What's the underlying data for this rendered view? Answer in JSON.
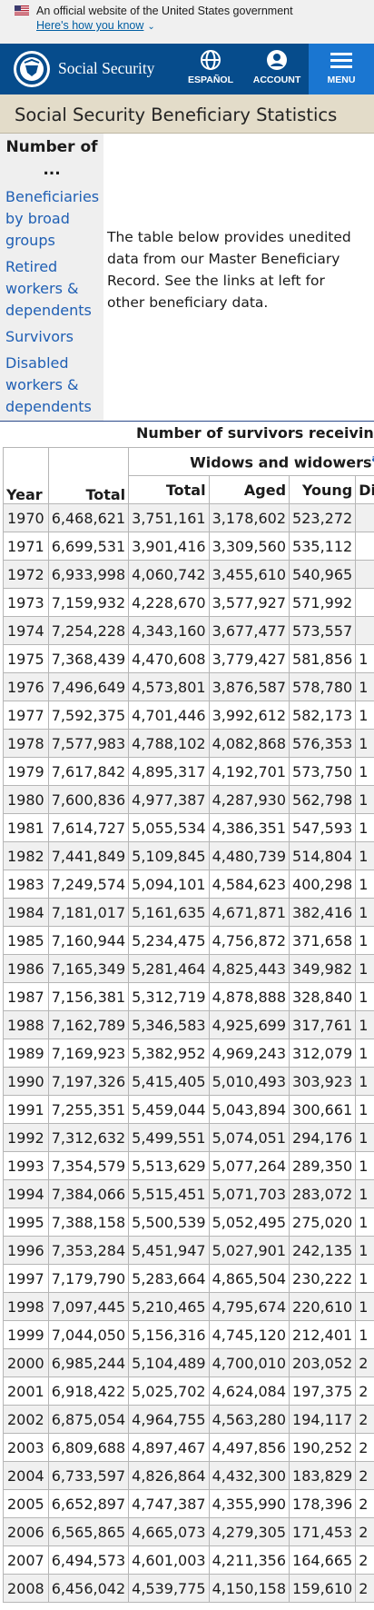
{
  "gov_banner": {
    "text": "An official website of the United States government",
    "link": "Here's how you know"
  },
  "header": {
    "brand": "Social Security",
    "espanol_label": "ESPAÑOL",
    "account_label": "ACCOUNT",
    "menu_label": "MENU"
  },
  "page_title": "Social Security Beneficiary Statistics",
  "sidenav": {
    "heading": "Number of ...",
    "items": [
      "Beneficiaries by broad groups",
      "Retired workers & dependents",
      "Survivors",
      "Disabled workers & dependents"
    ]
  },
  "intro": "The table below provides unedited data from our Master Beneficiary Record. See the links at left for other beneficiary data.",
  "table": {
    "caption": "Number of survivors receivin",
    "group_header": "Widows and widowers",
    "group_footnote": "a",
    "columns": [
      "Year",
      "Total",
      "Total",
      "Aged",
      "Young",
      "Di"
    ],
    "rows": [
      [
        "1970",
        "6,468,621",
        "3,751,161",
        "3,178,602",
        "523,272",
        ""
      ],
      [
        "1971",
        "6,699,531",
        "3,901,416",
        "3,309,560",
        "535,112",
        ""
      ],
      [
        "1972",
        "6,933,998",
        "4,060,742",
        "3,455,610",
        "540,965",
        ""
      ],
      [
        "1973",
        "7,159,932",
        "4,228,670",
        "3,577,927",
        "571,992",
        ""
      ],
      [
        "1974",
        "7,254,228",
        "4,343,160",
        "3,677,477",
        "573,557",
        ""
      ],
      [
        "1975",
        "7,368,439",
        "4,470,608",
        "3,779,427",
        "581,856",
        "1"
      ],
      [
        "1976",
        "7,496,649",
        "4,573,801",
        "3,876,587",
        "578,780",
        "1"
      ],
      [
        "1977",
        "7,592,375",
        "4,701,446",
        "3,992,612",
        "582,173",
        "1"
      ],
      [
        "1978",
        "7,577,983",
        "4,788,102",
        "4,082,868",
        "576,353",
        "1"
      ],
      [
        "1979",
        "7,617,842",
        "4,895,317",
        "4,192,701",
        "573,750",
        "1"
      ],
      [
        "1980",
        "7,600,836",
        "4,977,387",
        "4,287,930",
        "562,798",
        "1"
      ],
      [
        "1981",
        "7,614,727",
        "5,055,534",
        "4,386,351",
        "547,593",
        "1"
      ],
      [
        "1982",
        "7,441,849",
        "5,109,845",
        "4,480,739",
        "514,804",
        "1"
      ],
      [
        "1983",
        "7,249,574",
        "5,094,101",
        "4,584,623",
        "400,298",
        "1"
      ],
      [
        "1984",
        "7,181,017",
        "5,161,635",
        "4,671,871",
        "382,416",
        "1"
      ],
      [
        "1985",
        "7,160,944",
        "5,234,475",
        "4,756,872",
        "371,658",
        "1"
      ],
      [
        "1986",
        "7,165,349",
        "5,281,464",
        "4,825,443",
        "349,982",
        "1"
      ],
      [
        "1987",
        "7,156,381",
        "5,312,719",
        "4,878,888",
        "328,840",
        "1"
      ],
      [
        "1988",
        "7,162,789",
        "5,346,583",
        "4,925,699",
        "317,761",
        "1"
      ],
      [
        "1989",
        "7,169,923",
        "5,382,952",
        "4,969,243",
        "312,079",
        "1"
      ],
      [
        "1990",
        "7,197,326",
        "5,415,405",
        "5,010,493",
        "303,923",
        "1"
      ],
      [
        "1991",
        "7,255,351",
        "5,459,044",
        "5,043,894",
        "300,661",
        "1"
      ],
      [
        "1992",
        "7,312,632",
        "5,499,551",
        "5,074,051",
        "294,176",
        "1"
      ],
      [
        "1993",
        "7,354,579",
        "5,513,629",
        "5,077,264",
        "289,350",
        "1"
      ],
      [
        "1994",
        "7,384,066",
        "5,515,451",
        "5,071,703",
        "283,072",
        "1"
      ],
      [
        "1995",
        "7,388,158",
        "5,500,539",
        "5,052,495",
        "275,020",
        "1"
      ],
      [
        "1996",
        "7,353,284",
        "5,451,947",
        "5,027,901",
        "242,135",
        "1"
      ],
      [
        "1997",
        "7,179,790",
        "5,283,664",
        "4,865,504",
        "230,222",
        "1"
      ],
      [
        "1998",
        "7,097,445",
        "5,210,465",
        "4,795,674",
        "220,610",
        "1"
      ],
      [
        "1999",
        "7,044,050",
        "5,156,316",
        "4,745,120",
        "212,401",
        "1"
      ],
      [
        "2000",
        "6,985,244",
        "5,104,489",
        "4,700,010",
        "203,052",
        "2"
      ],
      [
        "2001",
        "6,918,422",
        "5,025,702",
        "4,624,084",
        "197,375",
        "2"
      ],
      [
        "2002",
        "6,875,054",
        "4,964,755",
        "4,563,280",
        "194,117",
        "2"
      ],
      [
        "2003",
        "6,809,688",
        "4,897,467",
        "4,497,856",
        "190,252",
        "2"
      ],
      [
        "2004",
        "6,733,597",
        "4,826,864",
        "4,432,300",
        "183,829",
        "2"
      ],
      [
        "2005",
        "6,652,897",
        "4,747,387",
        "4,355,990",
        "178,396",
        "2"
      ],
      [
        "2006",
        "6,565,865",
        "4,665,073",
        "4,279,305",
        "171,453",
        "2"
      ],
      [
        "2007",
        "6,494,573",
        "4,601,003",
        "4,211,356",
        "164,665",
        "2"
      ],
      [
        "2008",
        "6,456,042",
        "4,539,775",
        "4,150,158",
        "159,610",
        "2"
      ]
    ]
  },
  "colors": {
    "header_bg": "#064c8c",
    "menu_bg": "#1a76d1",
    "title_band_bg": "#e3dcc9",
    "link": "#1f5fb4"
  }
}
